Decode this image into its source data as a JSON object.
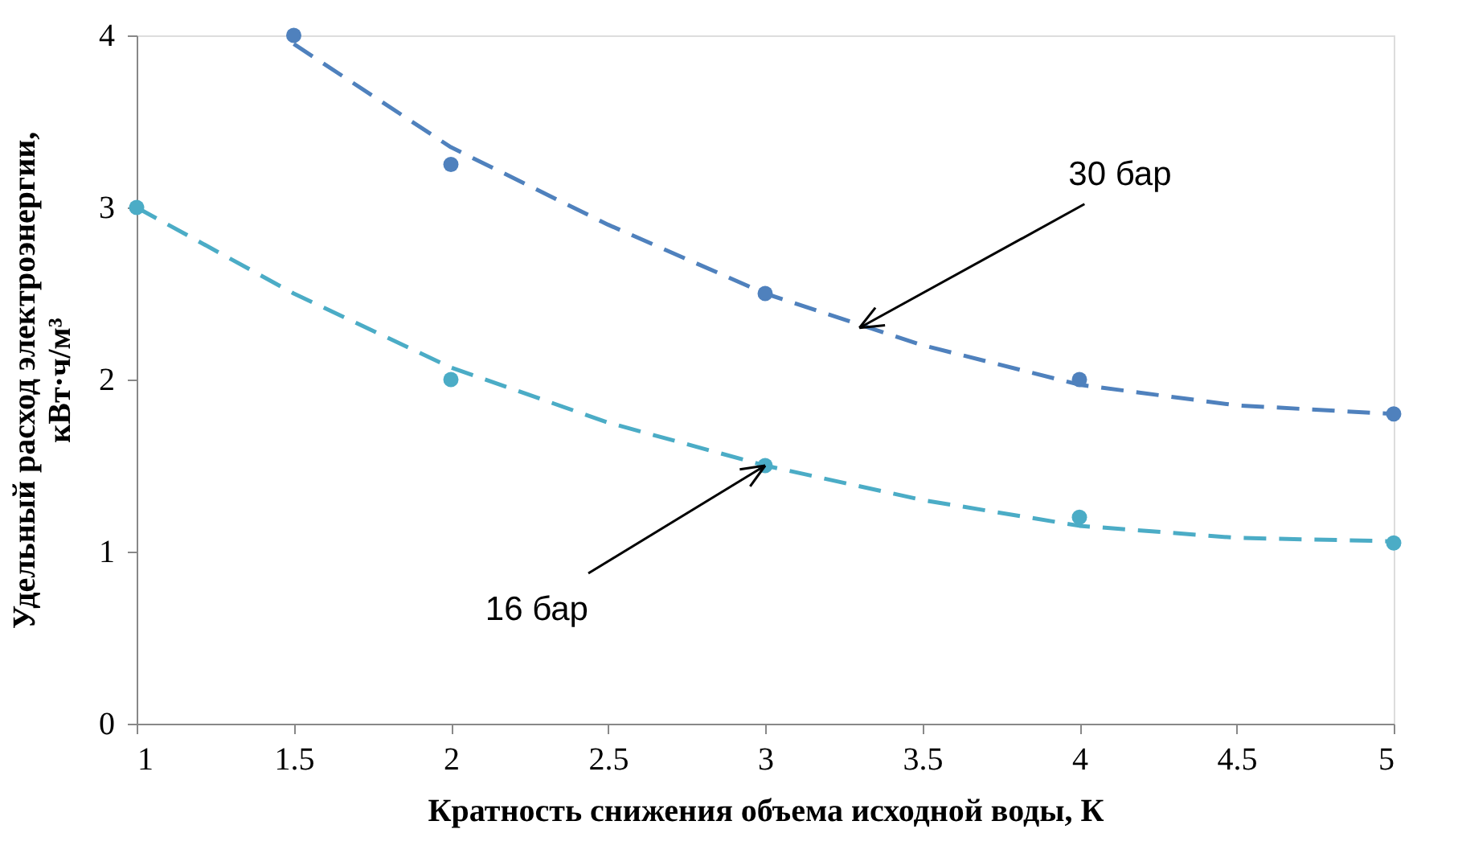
{
  "chart_data": {
    "type": "scatter",
    "xlabel": "Кратность снижения объема исходной воды, К",
    "ylabel": "Удельный расход электроэнергии,\nкВт·ч/м³",
    "xlim": [
      1,
      5
    ],
    "xticks": [
      1,
      1.5,
      2,
      2.5,
      3,
      3.5,
      4,
      4.5,
      5
    ],
    "ylim": [
      0,
      4
    ],
    "yticks": [
      0,
      1,
      2,
      3,
      4
    ],
    "grid": false,
    "series": [
      {
        "marker": "circle",
        "color": "#4f81bd",
        "x": [
          1.5,
          2,
          3,
          4,
          5
        ],
        "values": [
          4.0,
          3.25,
          2.5,
          2.0,
          1.8
        ]
      },
      {
        "marker": "circle",
        "color": "#4bacc6",
        "x": [
          1,
          2,
          3,
          4,
          5
        ],
        "values": [
          3.0,
          2.0,
          1.5,
          1.2,
          1.05
        ]
      },
      {
        "type": "line",
        "line_style": "dashed",
        "color": "#4f81bd",
        "x": [
          1.5,
          2,
          2.5,
          3,
          3.5,
          4,
          4.5,
          5
        ],
        "values": [
          3.95,
          3.35,
          2.9,
          2.5,
          2.2,
          1.97,
          1.85,
          1.8
        ]
      },
      {
        "type": "line",
        "line_style": "dashed",
        "color": "#4bacc6",
        "x": [
          1,
          1.5,
          2,
          2.5,
          3,
          3.5,
          4,
          4.5,
          5
        ],
        "values": [
          3.0,
          2.5,
          2.07,
          1.75,
          1.5,
          1.3,
          1.15,
          1.08,
          1.06
        ]
      }
    ],
    "annotations": [
      {
        "text": "30 бар",
        "x": 3.3,
        "y": 2.3
      },
      {
        "text": "16 бар",
        "x": 3.0,
        "y": 1.5
      }
    ]
  }
}
